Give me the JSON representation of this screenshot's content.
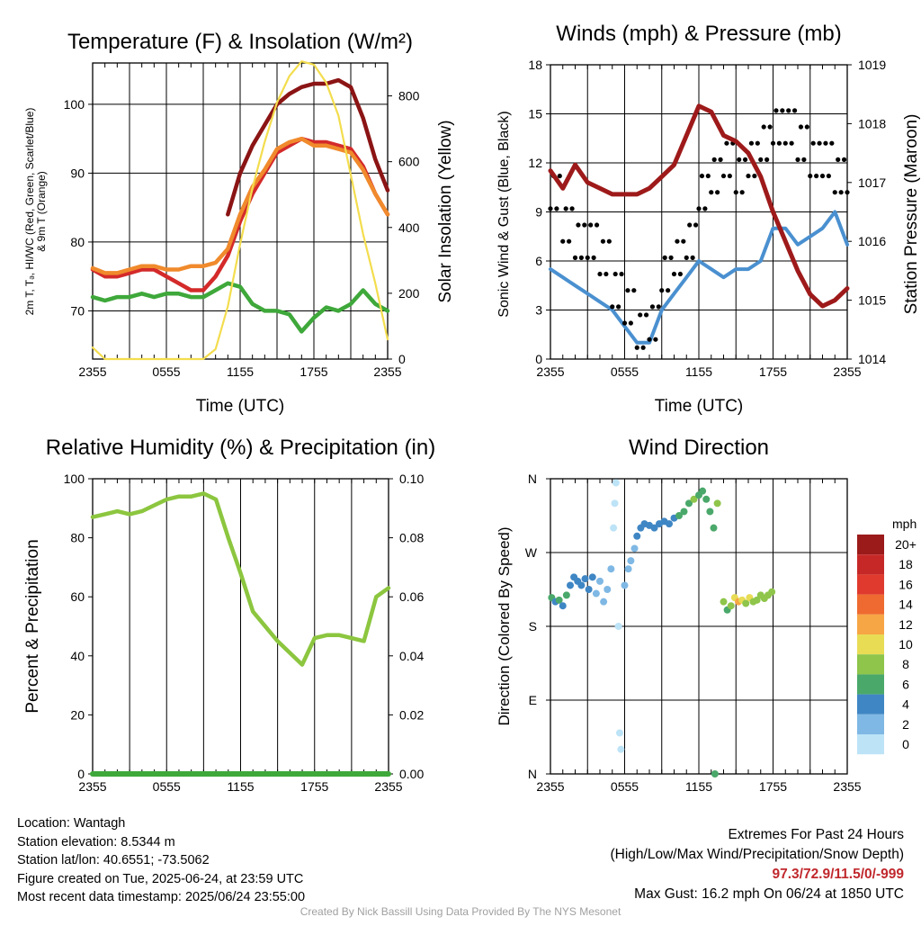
{
  "colors": {
    "temp": "#d42a2a",
    "heat_index": "#8b1414",
    "temp9m": "#f08a2c",
    "dewpoint": "#3ea83a",
    "solar": "#f3dd4e",
    "wind": "#4a90d0",
    "gust": "#000000",
    "pressure": "#9e1a1a",
    "rh": "#8cc63f",
    "precip": "#3ea83a",
    "grid": "#000000"
  },
  "time_ticks": [
    "2355",
    "0555",
    "1155",
    "1755",
    "2355"
  ],
  "panels": {
    "temp": {
      "title": "Temperature (F) & Insolation (W/m²)",
      "y_left_label_line1": "2m T, Tₔ, HI/WC (Red, Green, Scarlet/Blue)",
      "y_left_label_line2": "& 9m T (Orange)",
      "y_right_label": "Solar Insolation (Yellow)",
      "x_label": "Time (UTC)",
      "y_left_ticks": [
        "70",
        "80",
        "90",
        "100"
      ],
      "y_right_ticks": [
        "0",
        "200",
        "400",
        "600",
        "800"
      ]
    },
    "wind": {
      "title": "Winds (mph) & Pressure (mb)",
      "y_left_label": "Sonic Wind & Gust (Blue, Black)",
      "y_right_label": "Station Pressure (Maroon)",
      "x_label": "Time (UTC)",
      "y_left_ticks": [
        "0",
        "3",
        "6",
        "9",
        "12",
        "15",
        "18"
      ],
      "y_right_ticks": [
        "1014",
        "1015",
        "1016",
        "1017",
        "1018",
        "1019"
      ]
    },
    "rh": {
      "title": "Relative Humidity (%) & Precipitation (in)",
      "y_left_label": "Percent & Precipitation",
      "y_left_ticks": [
        "0",
        "20",
        "40",
        "60",
        "80",
        "100"
      ],
      "y_right_ticks": [
        "0.00",
        "0.02",
        "0.04",
        "0.06",
        "0.08",
        "0.10"
      ]
    },
    "wdir": {
      "title": "Wind Direction",
      "y_left_label": "Direction (Colored By Speed)",
      "y_left_ticks": [
        "N",
        "E",
        "S",
        "W",
        "N"
      ],
      "legend_title": "mph",
      "legend_labels": [
        "20+",
        "18",
        "16",
        "14",
        "12",
        "10",
        "8",
        "6",
        "4",
        "2",
        "0"
      ],
      "legend_colors": [
        "#9b1b1b",
        "#c62828",
        "#e03a2e",
        "#ef6a30",
        "#f7a645",
        "#e8dc55",
        "#8ec54a",
        "#4aa86a",
        "#3f86c4",
        "#7fb8e4",
        "#bde3f7"
      ]
    }
  },
  "info": {
    "location": "Location: Wantagh",
    "elevation": "Station elevation: 8.5344 m",
    "latlon": "Station lat/lon: 40.6551; -73.5062",
    "created": "Figure created on Tue, 2025-06-24, at 23:59 UTC",
    "recent": "Most recent data timestamp: 2025/06/24 23:55:00",
    "extremes_title": "Extremes For Past 24 Hours",
    "extremes_subtitle": "(High/Low/Max Wind/Precipitation/Snow Depth)",
    "extremes_values": "97.3/72.9/11.5/0/-999",
    "max_gust": "Max Gust: 16.2 mph On 06/24 at 1850 UTC",
    "credit": "Created By Nick Bassill Using Data Provided By The NYS Mesonet"
  },
  "chart_data": [
    {
      "type": "line",
      "title": "Temperature (F) & Insolation (W/m²)",
      "x": [
        0,
        1,
        2,
        3,
        4,
        5,
        6,
        7,
        8,
        9,
        10,
        11,
        12,
        13,
        14,
        15,
        16,
        17,
        18,
        19,
        20,
        21,
        22,
        23,
        24
      ],
      "xlabel": "Time (UTC)",
      "ylim": [
        63,
        106
      ],
      "y2lim": [
        0,
        900
      ],
      "series": [
        {
          "axis": "left",
          "color": "temp",
          "values": [
            76,
            75,
            75,
            75.5,
            76,
            76,
            75,
            74,
            73,
            73,
            75,
            78,
            83,
            87,
            90,
            93,
            94,
            95,
            94.5,
            94.5,
            94,
            93.5,
            91,
            87,
            84
          ]
        },
        {
          "axis": "left",
          "color": "temp9m",
          "values": [
            76.2,
            75.5,
            75.5,
            76,
            76.5,
            76.5,
            76,
            76,
            76.5,
            76.5,
            77,
            79,
            84,
            88,
            90.5,
            93.5,
            94.5,
            95,
            94,
            94,
            93.5,
            93,
            90.5,
            87,
            84
          ]
        },
        {
          "axis": "left",
          "color": "heat_index",
          "values": [
            null,
            null,
            null,
            null,
            null,
            null,
            null,
            null,
            null,
            null,
            null,
            84,
            90,
            94,
            97,
            100,
            101.5,
            102.5,
            103,
            103,
            103.5,
            102.5,
            98,
            92,
            87.5
          ]
        },
        {
          "axis": "left",
          "color": "dewpoint",
          "values": [
            72,
            71.5,
            72,
            72,
            72.5,
            72,
            72.5,
            72.5,
            72,
            72,
            73,
            74,
            73.5,
            71,
            70,
            70,
            69.5,
            67,
            69,
            70.5,
            70,
            71,
            73,
            71,
            70
          ]
        },
        {
          "axis": "right",
          "color": "solar",
          "values": [
            35,
            0,
            0,
            0,
            0,
            0,
            0,
            0,
            0,
            0,
            30,
            160,
            350,
            520,
            660,
            780,
            860,
            905,
            895,
            840,
            740,
            560,
            380,
            230,
            60
          ]
        }
      ]
    },
    {
      "type": "line",
      "title": "Winds (mph) & Pressure (mb)",
      "x": [
        0,
        1,
        2,
        3,
        4,
        5,
        6,
        7,
        8,
        9,
        10,
        11,
        12,
        13,
        14,
        15,
        16,
        17,
        18,
        19,
        20,
        21,
        22,
        23,
        24
      ],
      "xlabel": "Time (UTC)",
      "ylim": [
        0,
        18
      ],
      "y2lim": [
        1014,
        1019
      ],
      "series": [
        {
          "axis": "left",
          "color": "wind",
          "values": [
            5.5,
            5,
            4.5,
            4,
            3.5,
            3,
            2,
            1,
            1,
            3,
            4,
            5,
            6,
            5.5,
            5,
            5.5,
            5.5,
            6,
            8,
            8,
            7,
            7.5,
            8,
            9,
            7
          ]
        },
        {
          "axis": "left",
          "color": "gust",
          "values": [
            10,
            8,
            7,
            7,
            6,
            4,
            3,
            1.5,
            2,
            5,
            6,
            7,
            10,
            11,
            12,
            11,
            12,
            13,
            14,
            14,
            13,
            12,
            12,
            11,
            11
          ]
        },
        {
          "axis": "right",
          "color": "pressure",
          "values": [
            1017.2,
            1016.9,
            1017.3,
            1017,
            1016.9,
            1016.8,
            1016.8,
            1016.8,
            1016.9,
            1017.1,
            1017.3,
            1017.8,
            1018.3,
            1018.2,
            1017.8,
            1017.7,
            1017.5,
            1017.1,
            1016.5,
            1016,
            1015.5,
            1015.1,
            1014.9,
            1015,
            1015.2
          ]
        }
      ]
    },
    {
      "type": "line",
      "title": "Relative Humidity (%) & Precipitation (in)",
      "x": [
        0,
        1,
        2,
        3,
        4,
        5,
        6,
        7,
        8,
        9,
        10,
        11,
        12,
        13,
        14,
        15,
        16,
        17,
        18,
        19,
        20,
        21,
        22,
        23,
        24
      ],
      "ylabel": "Percent & Precipitation",
      "ylim": [
        0,
        100
      ],
      "y2lim": [
        0,
        0.1
      ],
      "series": [
        {
          "axis": "left",
          "color": "rh",
          "values": [
            87,
            88,
            89,
            88,
            89,
            91,
            93,
            94,
            94,
            95,
            93,
            80,
            68,
            55,
            50,
            45,
            41,
            37,
            46,
            47,
            47,
            46,
            45,
            60,
            63
          ]
        },
        {
          "axis": "right",
          "color": "precip",
          "values": [
            0,
            0,
            0,
            0,
            0,
            0,
            0,
            0,
            0,
            0,
            0,
            0,
            0,
            0,
            0,
            0,
            0,
            0,
            0,
            0,
            0,
            0,
            0,
            0,
            0
          ]
        }
      ]
    },
    {
      "type": "scatter",
      "title": "Wind Direction",
      "ylabel": "Direction (Colored By Speed)",
      "ylim": [
        0,
        360
      ],
      "points": [
        {
          "x": 0.1,
          "dir": 215,
          "spd": 6
        },
        {
          "x": 0.4,
          "dir": 210,
          "spd": 4
        },
        {
          "x": 0.7,
          "dir": 212,
          "spd": 6
        },
        {
          "x": 1.0,
          "dir": 205,
          "spd": 4
        },
        {
          "x": 1.3,
          "dir": 218,
          "spd": 6
        },
        {
          "x": 1.6,
          "dir": 230,
          "spd": 4
        },
        {
          "x": 1.9,
          "dir": 240,
          "spd": 4
        },
        {
          "x": 2.2,
          "dir": 235,
          "spd": 4
        },
        {
          "x": 2.5,
          "dir": 230,
          "spd": 4
        },
        {
          "x": 2.8,
          "dir": 238,
          "spd": 4
        },
        {
          "x": 3.1,
          "dir": 225,
          "spd": 4
        },
        {
          "x": 3.4,
          "dir": 240,
          "spd": 4
        },
        {
          "x": 3.7,
          "dir": 220,
          "spd": 2
        },
        {
          "x": 4.0,
          "dir": 235,
          "spd": 2
        },
        {
          "x": 4.3,
          "dir": 210,
          "spd": 2
        },
        {
          "x": 4.6,
          "dir": 225,
          "spd": 2
        },
        {
          "x": 4.9,
          "dir": 250,
          "spd": 2
        },
        {
          "x": 5.1,
          "dir": 300,
          "spd": 0
        },
        {
          "x": 5.2,
          "dir": 330,
          "spd": 0
        },
        {
          "x": 5.3,
          "dir": 355,
          "spd": 0
        },
        {
          "x": 5.5,
          "dir": 180,
          "spd": 0
        },
        {
          "x": 5.6,
          "dir": 50,
          "spd": 0
        },
        {
          "x": 5.7,
          "dir": 30,
          "spd": 0
        },
        {
          "x": 6.0,
          "dir": 230,
          "spd": 2
        },
        {
          "x": 6.3,
          "dir": 250,
          "spd": 2
        },
        {
          "x": 6.5,
          "dir": 260,
          "spd": 2
        },
        {
          "x": 6.8,
          "dir": 275,
          "spd": 2
        },
        {
          "x": 7.0,
          "dir": 290,
          "spd": 4
        },
        {
          "x": 7.3,
          "dir": 300,
          "spd": 4
        },
        {
          "x": 7.6,
          "dir": 305,
          "spd": 4
        },
        {
          "x": 8.0,
          "dir": 303,
          "spd": 4
        },
        {
          "x": 8.4,
          "dir": 300,
          "spd": 4
        },
        {
          "x": 8.8,
          "dir": 305,
          "spd": 4
        },
        {
          "x": 9.2,
          "dir": 308,
          "spd": 4
        },
        {
          "x": 9.6,
          "dir": 305,
          "spd": 4
        },
        {
          "x": 10.0,
          "dir": 312,
          "spd": 4
        },
        {
          "x": 10.4,
          "dir": 315,
          "spd": 6
        },
        {
          "x": 10.8,
          "dir": 320,
          "spd": 6
        },
        {
          "x": 11.2,
          "dir": 330,
          "spd": 6
        },
        {
          "x": 11.6,
          "dir": 335,
          "spd": 8
        },
        {
          "x": 12.0,
          "dir": 340,
          "spd": 6
        },
        {
          "x": 12.3,
          "dir": 345,
          "spd": 6
        },
        {
          "x": 12.6,
          "dir": 335,
          "spd": 6
        },
        {
          "x": 12.9,
          "dir": 320,
          "spd": 6
        },
        {
          "x": 13.2,
          "dir": 300,
          "spd": 6
        },
        {
          "x": 13.3,
          "dir": 0,
          "spd": 6
        },
        {
          "x": 13.5,
          "dir": 330,
          "spd": 8
        },
        {
          "x": 14.0,
          "dir": 210,
          "spd": 8
        },
        {
          "x": 14.3,
          "dir": 200,
          "spd": 6
        },
        {
          "x": 14.6,
          "dir": 205,
          "spd": 8
        },
        {
          "x": 14.9,
          "dir": 215,
          "spd": 10
        },
        {
          "x": 15.2,
          "dir": 210,
          "spd": 12
        },
        {
          "x": 15.5,
          "dir": 212,
          "spd": 10
        },
        {
          "x": 15.8,
          "dir": 208,
          "spd": 8
        },
        {
          "x": 16.1,
          "dir": 215,
          "spd": 10
        },
        {
          "x": 16.4,
          "dir": 210,
          "spd": 8
        },
        {
          "x": 16.7,
          "dir": 212,
          "spd": 8
        },
        {
          "x": 17.0,
          "dir": 218,
          "spd": 8
        },
        {
          "x": 17.3,
          "dir": 214,
          "spd": 8
        },
        {
          "x": 17.6,
          "dir": 218,
          "spd": 8
        },
        {
          "x": 17.9,
          "dir": 222,
          "spd": 8
        }
      ]
    }
  ]
}
